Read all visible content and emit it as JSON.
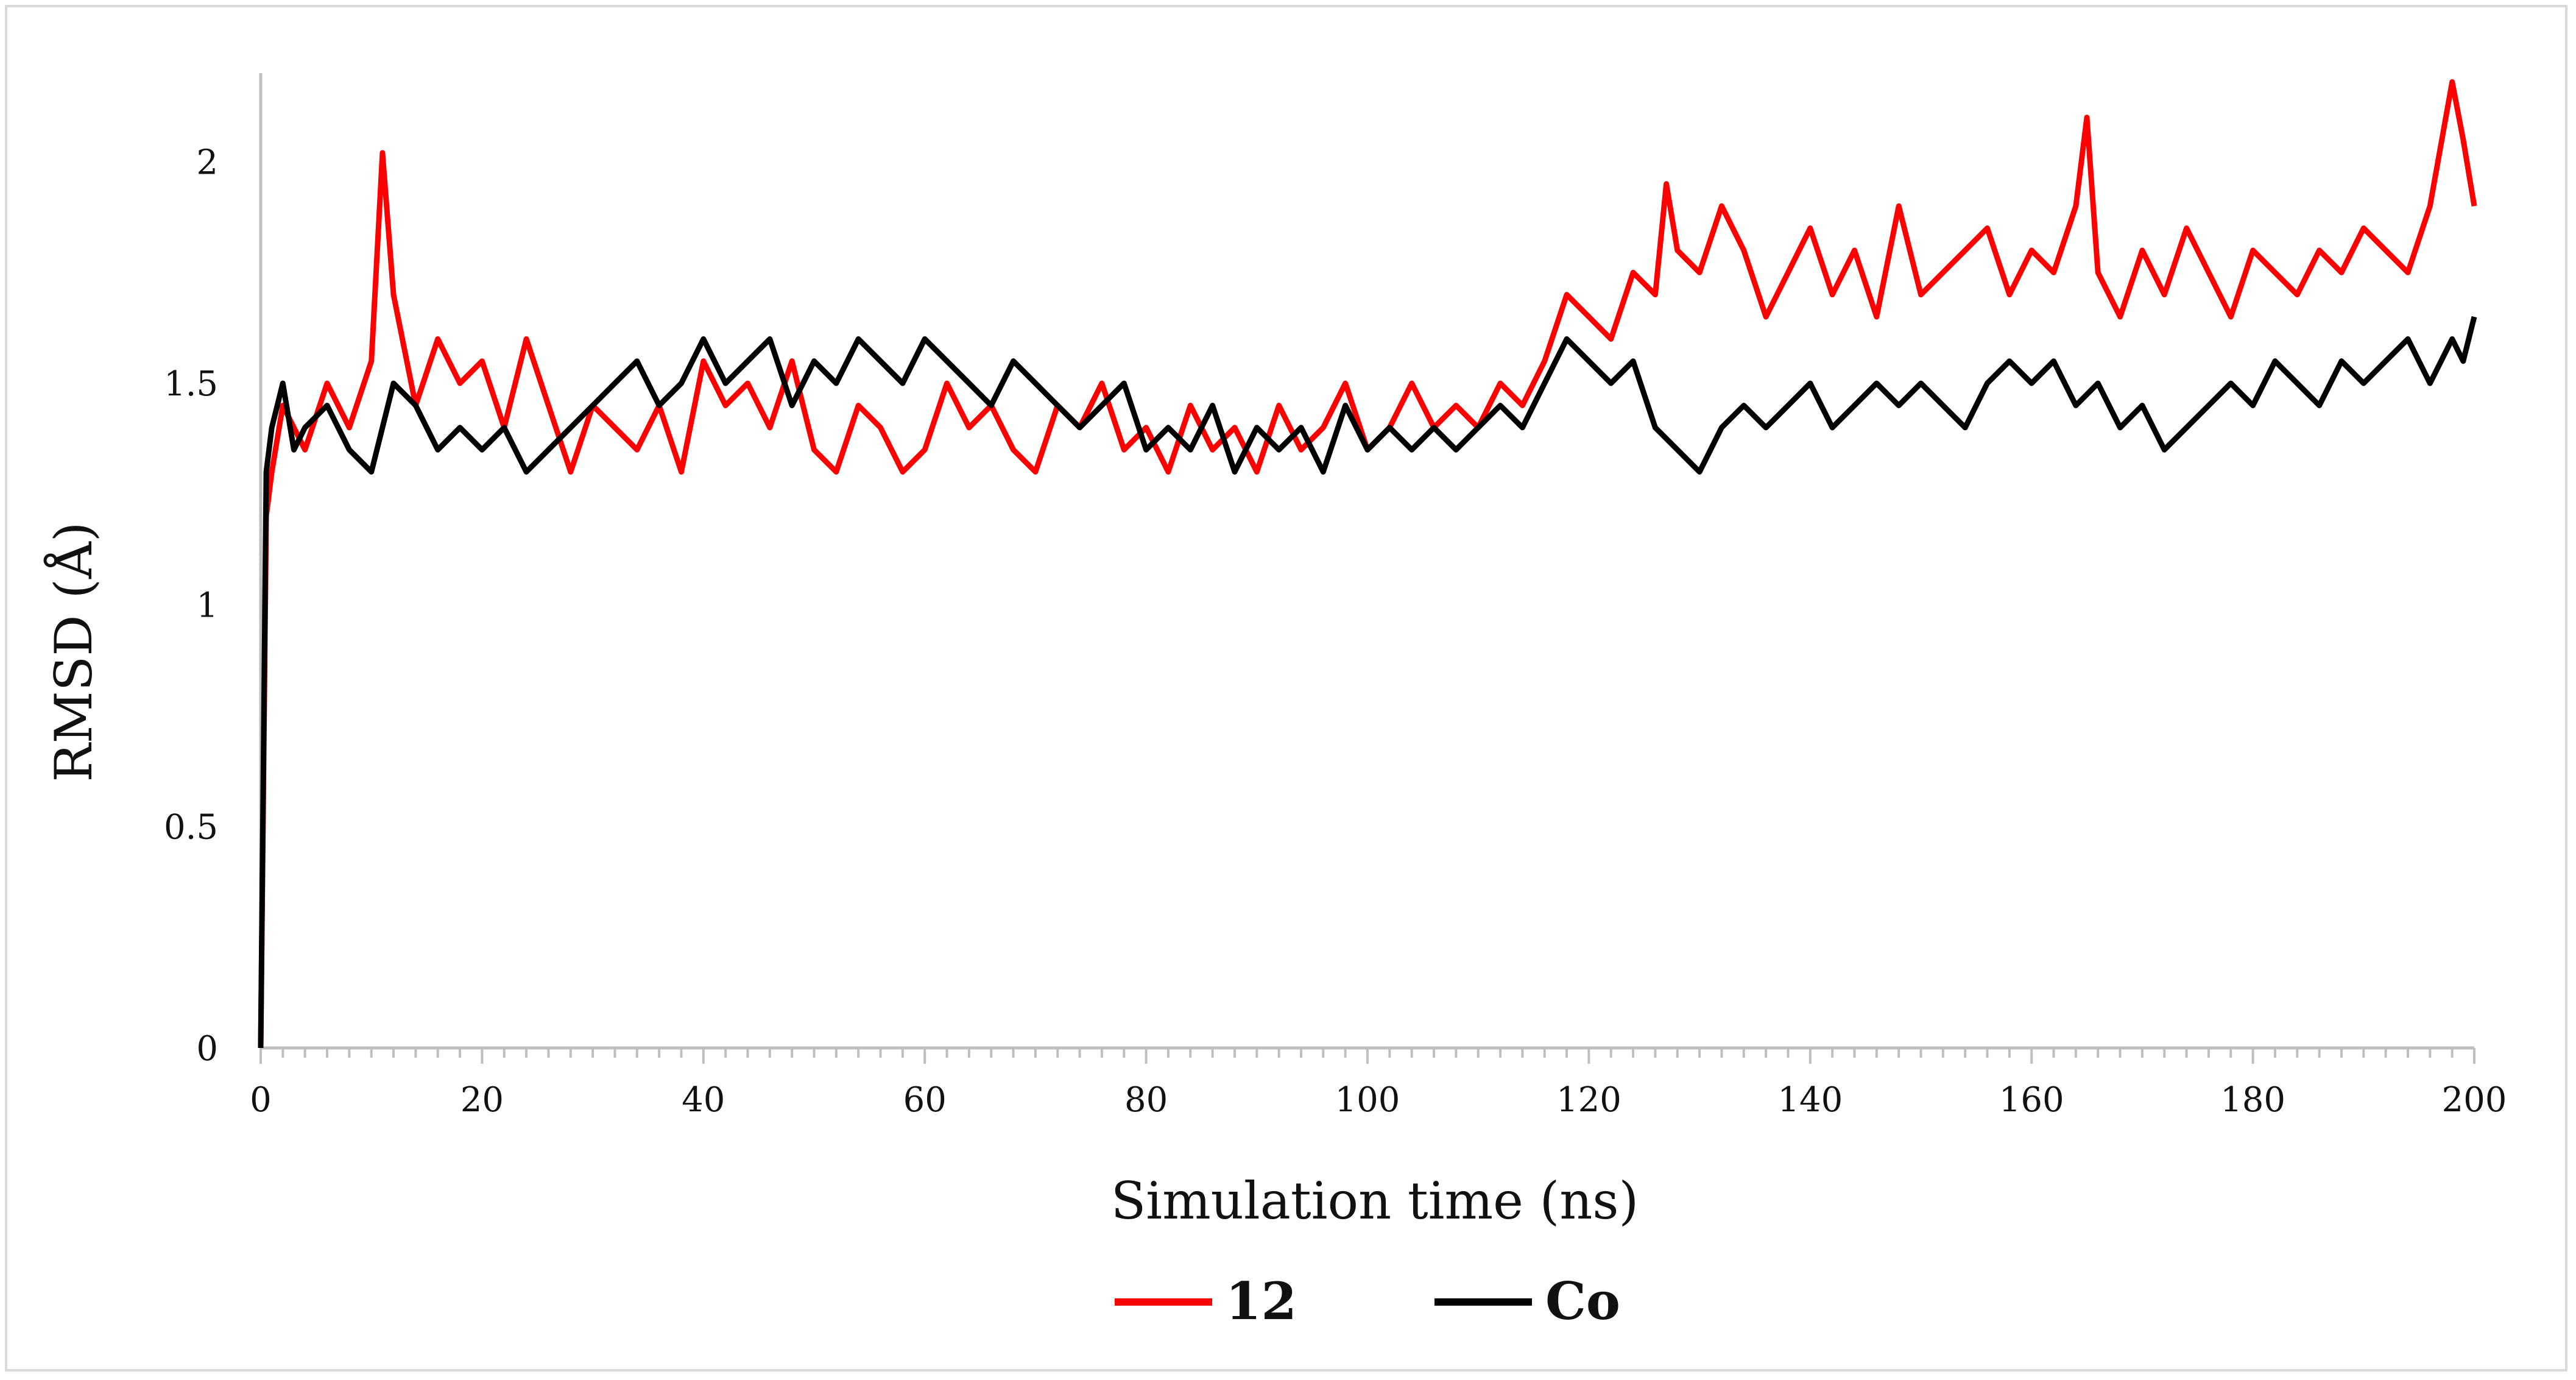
{
  "chart_data": {
    "type": "line",
    "title": "",
    "xlabel": "Simulation time (ns)",
    "ylabel": "RMSD (Å)",
    "xlim": [
      0,
      200
    ],
    "ylim": [
      0,
      2.2
    ],
    "x_ticks": [
      "0",
      "20",
      "40",
      "60",
      "80",
      "100",
      "120",
      "140",
      "160",
      "180",
      "200"
    ],
    "y_ticks": [
      "0",
      "0.5",
      "1",
      "1.5",
      "2"
    ],
    "grid": false,
    "legend_position": "bottom-center",
    "series": [
      {
        "name": "12",
        "color": "#ff0000",
        "x": [
          0,
          0.5,
          1,
          2,
          4,
          6,
          8,
          10,
          11,
          12,
          14,
          16,
          18,
          20,
          22,
          24,
          26,
          28,
          30,
          32,
          34,
          36,
          38,
          40,
          42,
          44,
          46,
          48,
          50,
          52,
          54,
          56,
          58,
          60,
          62,
          64,
          66,
          68,
          70,
          72,
          74,
          76,
          78,
          80,
          82,
          84,
          86,
          88,
          90,
          92,
          94,
          96,
          98,
          100,
          102,
          104,
          106,
          108,
          110,
          112,
          114,
          116,
          118,
          120,
          122,
          124,
          126,
          127,
          128,
          130,
          132,
          134,
          136,
          138,
          140,
          142,
          144,
          146,
          148,
          150,
          152,
          154,
          156,
          158,
          160,
          162,
          164,
          165,
          166,
          168,
          170,
          172,
          174,
          176,
          178,
          180,
          182,
          184,
          186,
          188,
          190,
          192,
          194,
          196,
          198,
          199,
          200
        ],
        "values": [
          0,
          1.2,
          1.3,
          1.45,
          1.35,
          1.5,
          1.4,
          1.55,
          2.02,
          1.7,
          1.45,
          1.6,
          1.5,
          1.55,
          1.4,
          1.6,
          1.45,
          1.3,
          1.45,
          1.4,
          1.35,
          1.45,
          1.3,
          1.55,
          1.45,
          1.5,
          1.4,
          1.55,
          1.35,
          1.3,
          1.45,
          1.4,
          1.3,
          1.35,
          1.5,
          1.4,
          1.45,
          1.35,
          1.3,
          1.45,
          1.4,
          1.5,
          1.35,
          1.4,
          1.3,
          1.45,
          1.35,
          1.4,
          1.3,
          1.45,
          1.35,
          1.4,
          1.5,
          1.35,
          1.4,
          1.5,
          1.4,
          1.45,
          1.4,
          1.5,
          1.45,
          1.55,
          1.7,
          1.65,
          1.6,
          1.75,
          1.7,
          1.95,
          1.8,
          1.75,
          1.9,
          1.8,
          1.65,
          1.75,
          1.85,
          1.7,
          1.8,
          1.65,
          1.9,
          1.7,
          1.75,
          1.8,
          1.85,
          1.7,
          1.8,
          1.75,
          1.9,
          2.1,
          1.75,
          1.65,
          1.8,
          1.7,
          1.85,
          1.75,
          1.65,
          1.8,
          1.75,
          1.7,
          1.8,
          1.75,
          1.85,
          1.8,
          1.75,
          1.9,
          2.18,
          2.05,
          1.9
        ]
      },
      {
        "name": "Co",
        "color": "#000000",
        "x": [
          0,
          0.5,
          1,
          2,
          3,
          4,
          6,
          8,
          10,
          12,
          14,
          16,
          18,
          20,
          22,
          24,
          26,
          28,
          30,
          32,
          34,
          36,
          38,
          40,
          42,
          44,
          46,
          48,
          50,
          52,
          54,
          56,
          58,
          60,
          62,
          64,
          66,
          68,
          70,
          72,
          74,
          76,
          78,
          80,
          82,
          84,
          86,
          88,
          90,
          92,
          94,
          96,
          98,
          100,
          102,
          104,
          106,
          108,
          110,
          112,
          114,
          116,
          118,
          120,
          122,
          124,
          126,
          128,
          130,
          132,
          134,
          136,
          138,
          140,
          142,
          144,
          146,
          148,
          150,
          152,
          154,
          156,
          158,
          160,
          162,
          164,
          166,
          168,
          170,
          172,
          174,
          176,
          178,
          180,
          182,
          184,
          186,
          188,
          190,
          192,
          194,
          196,
          198,
          199,
          200
        ],
        "values": [
          0,
          1.3,
          1.4,
          1.5,
          1.35,
          1.4,
          1.45,
          1.35,
          1.3,
          1.5,
          1.45,
          1.35,
          1.4,
          1.35,
          1.4,
          1.3,
          1.35,
          1.4,
          1.45,
          1.5,
          1.55,
          1.45,
          1.5,
          1.6,
          1.5,
          1.55,
          1.6,
          1.45,
          1.55,
          1.5,
          1.6,
          1.55,
          1.5,
          1.6,
          1.55,
          1.5,
          1.45,
          1.55,
          1.5,
          1.45,
          1.4,
          1.45,
          1.5,
          1.35,
          1.4,
          1.35,
          1.45,
          1.3,
          1.4,
          1.35,
          1.4,
          1.3,
          1.45,
          1.35,
          1.4,
          1.35,
          1.4,
          1.35,
          1.4,
          1.45,
          1.4,
          1.5,
          1.6,
          1.55,
          1.5,
          1.55,
          1.4,
          1.35,
          1.3,
          1.4,
          1.45,
          1.4,
          1.45,
          1.5,
          1.4,
          1.45,
          1.5,
          1.45,
          1.5,
          1.45,
          1.4,
          1.5,
          1.55,
          1.5,
          1.55,
          1.45,
          1.5,
          1.4,
          1.45,
          1.35,
          1.4,
          1.45,
          1.5,
          1.45,
          1.55,
          1.5,
          1.45,
          1.55,
          1.5,
          1.55,
          1.6,
          1.5,
          1.6,
          1.55,
          1.65
        ]
      }
    ]
  }
}
